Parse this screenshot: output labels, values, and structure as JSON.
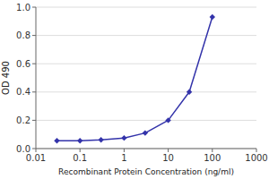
{
  "chart_data": {
    "type": "line",
    "x": [
      0.03,
      0.1,
      0.3,
      1.0,
      3.0,
      10.0,
      30.0,
      100.0
    ],
    "values": [
      0.055,
      0.055,
      0.062,
      0.075,
      0.11,
      0.2,
      0.4,
      0.93
    ],
    "color": "#3333aa",
    "marker": "diamond",
    "xlabel": "Recombinant Protein Concentration (ng/ml)",
    "ylabel": "OD 490",
    "log": "x",
    "xlim": [
      0.01,
      1000
    ],
    "xticks": [
      0.01,
      0.1,
      1,
      10,
      100,
      1000
    ],
    "ylim": [
      0.0,
      1.0
    ],
    "yticks": [
      {
        "value": 0.0,
        "label": "0.0"
      },
      0.2,
      0.4,
      0.6,
      0.8,
      {
        "value": 1.0,
        "label": "1.0"
      }
    ],
    "grid": "y"
  }
}
